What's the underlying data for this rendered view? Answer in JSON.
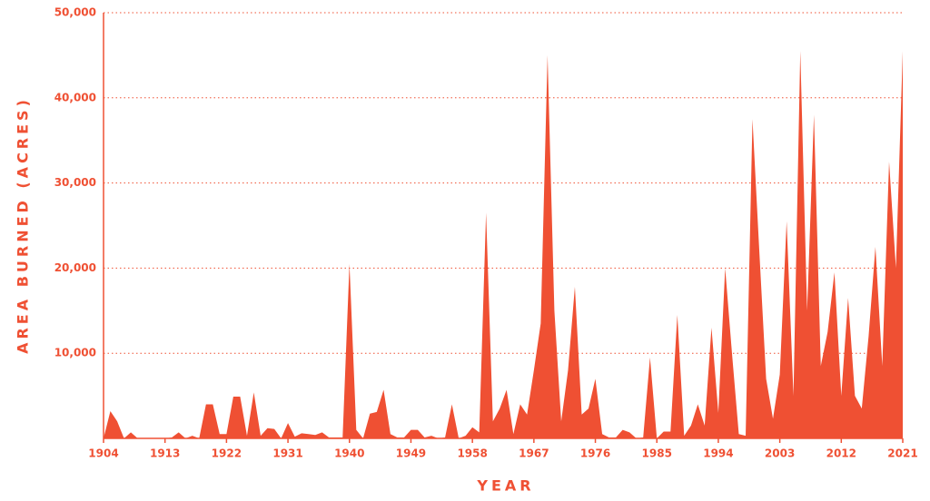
{
  "chart_data": {
    "type": "area",
    "xlabel": "YEAR",
    "ylabel": "AREA BURNED (ACRES)",
    "color": "#ef5033",
    "grid": true,
    "x": [
      1904,
      1905,
      1906,
      1907,
      1908,
      1909,
      1910,
      1911,
      1912,
      1913,
      1914,
      1915,
      1916,
      1917,
      1918,
      1919,
      1920,
      1921,
      1922,
      1923,
      1924,
      1925,
      1926,
      1927,
      1928,
      1929,
      1930,
      1931,
      1932,
      1933,
      1934,
      1935,
      1936,
      1937,
      1938,
      1939,
      1940,
      1941,
      1942,
      1943,
      1944,
      1945,
      1946,
      1947,
      1948,
      1949,
      1950,
      1951,
      1952,
      1953,
      1954,
      1955,
      1956,
      1957,
      1958,
      1959,
      1960,
      1961,
      1962,
      1963,
      1964,
      1965,
      1966,
      1967,
      1968,
      1969,
      1970,
      1971,
      1972,
      1973,
      1974,
      1975,
      1976,
      1977,
      1978,
      1979,
      1980,
      1981,
      1982,
      1983,
      1984,
      1985,
      1986,
      1987,
      1988,
      1989,
      1990,
      1991,
      1992,
      1993,
      1994,
      1995,
      1996,
      1997,
      1998,
      1999,
      2000,
      2001,
      2002,
      2003,
      2004,
      2005,
      2006,
      2007,
      2008,
      2009,
      2010,
      2011,
      2012,
      2013,
      2014,
      2015,
      2016,
      2017,
      2018,
      2019,
      2020,
      2021
    ],
    "values": [
      0,
      3200,
      2000,
      0,
      700,
      0,
      0,
      0,
      0,
      0,
      100,
      700,
      0,
      300,
      0,
      4000,
      4000,
      500,
      500,
      4900,
      4900,
      300,
      5400,
      300,
      1200,
      1100,
      0,
      1800,
      200,
      600,
      500,
      400,
      700,
      100,
      100,
      100,
      20500,
      1000,
      0,
      2900,
      3100,
      5700,
      500,
      100,
      100,
      1000,
      1000,
      100,
      300,
      0,
      100,
      4000,
      0,
      300,
      1300,
      700,
      26500,
      2000,
      3500,
      5700,
      500,
      4000,
      2800,
      8000,
      13500,
      45000,
      15000,
      2000,
      8000,
      17800,
      2800,
      3500,
      7000,
      500,
      100,
      100,
      1000,
      700,
      0,
      100,
      9500,
      0,
      800,
      800,
      14500,
      300,
      1500,
      4000,
      1500,
      13000,
      3000,
      20000,
      10000,
      500,
      300,
      37500,
      22000,
      7000,
      2300,
      7500,
      25500,
      5000,
      45500,
      15000,
      38000,
      8500,
      12500,
      19500,
      5000,
      16500,
      5000,
      3500,
      12000,
      22500,
      8500,
      32500,
      20000,
      45500
    ],
    "xlim": [
      1904,
      2021
    ],
    "xticks": [
      1904,
      1913,
      1922,
      1931,
      1940,
      1949,
      1958,
      1967,
      1976,
      1985,
      1994,
      2003,
      2012,
      2021
    ],
    "ylim": [
      0,
      50000
    ],
    "yticks": [
      {
        "value": 10000,
        "label": "10,000"
      },
      {
        "value": 20000,
        "label": "20,000"
      },
      {
        "value": 30000,
        "label": "30,000"
      },
      {
        "value": 40000,
        "label": "40,000"
      },
      {
        "value": 50000,
        "label": "50,000"
      }
    ]
  }
}
